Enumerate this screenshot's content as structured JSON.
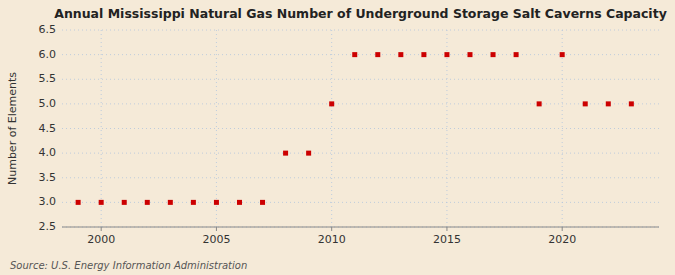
{
  "chart_data": {
    "type": "scatter",
    "title": "Annual Mississippi Natural Gas Number of Underground Storage Salt Caverns Capacity",
    "y_label": "Number of Elements",
    "source": "Source: U.S. Energy Information Administration",
    "x": [
      1999,
      2000,
      2001,
      2002,
      2003,
      2004,
      2005,
      2006,
      2007,
      2008,
      2009,
      2010,
      2011,
      2012,
      2013,
      2014,
      2015,
      2016,
      2017,
      2018,
      2019,
      2020,
      2021,
      2022,
      2023
    ],
    "values": [
      3,
      3,
      3,
      3,
      3,
      3,
      3,
      3,
      3,
      4,
      4,
      5,
      6,
      6,
      6,
      6,
      6,
      6,
      6,
      6,
      5,
      6,
      5,
      5,
      5
    ],
    "color": "#cc0000",
    "marker": "square",
    "xlim": [
      1998.3,
      2024.2
    ],
    "xticks": [
      2000,
      2005,
      2010,
      2015,
      2020
    ],
    "ylim": [
      2.5,
      6.5
    ],
    "yticks": [
      2.5,
      {
        "value": 3.0,
        "label": "3.0"
      },
      3.5,
      {
        "value": 4.0,
        "label": "4.0"
      },
      4.5,
      {
        "value": 5.0,
        "label": "5.0"
      },
      5.5,
      {
        "value": 6.0,
        "label": "6.0"
      },
      6.5
    ],
    "grid": true
  }
}
